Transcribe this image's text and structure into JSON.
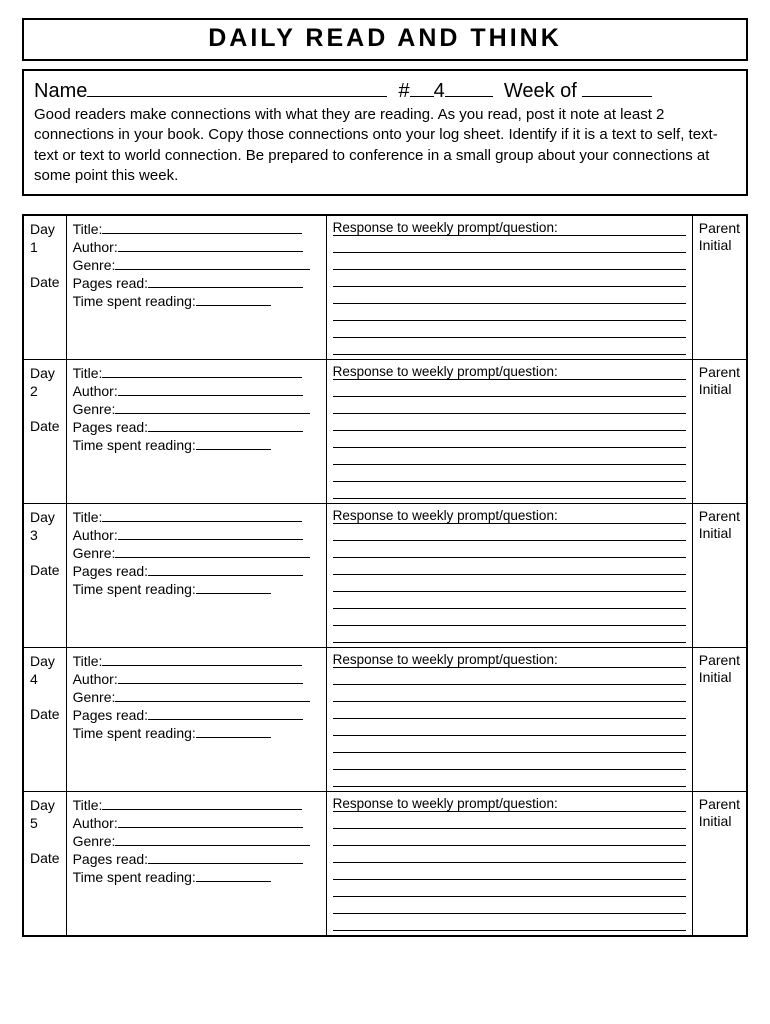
{
  "title": "DAILY READ AND THINK",
  "header": {
    "name_label": "Name",
    "hash_label": "#",
    "hash_value": "4",
    "week_label": "Week of",
    "instructions": "Good readers make connections with what they are reading. As you read, post it note at least 2 connections in your book. Copy those connections onto your log sheet. Identify if it is a text to self, text-text or text to world connection. Be prepared to conference in a small group about your connections at some point this week."
  },
  "columns": {
    "day_prefix": "Day",
    "date_label": "Date",
    "title_field": "Title:",
    "author_field": "Author:",
    "genre_field": "Genre:",
    "pages_field": "Pages read:",
    "time_field": "Time spent reading:",
    "response_prompt": "Response to weekly prompt/question:",
    "parent_initial": "Parent Initial"
  },
  "days": [
    "1",
    "2",
    "3",
    "4",
    "5"
  ]
}
